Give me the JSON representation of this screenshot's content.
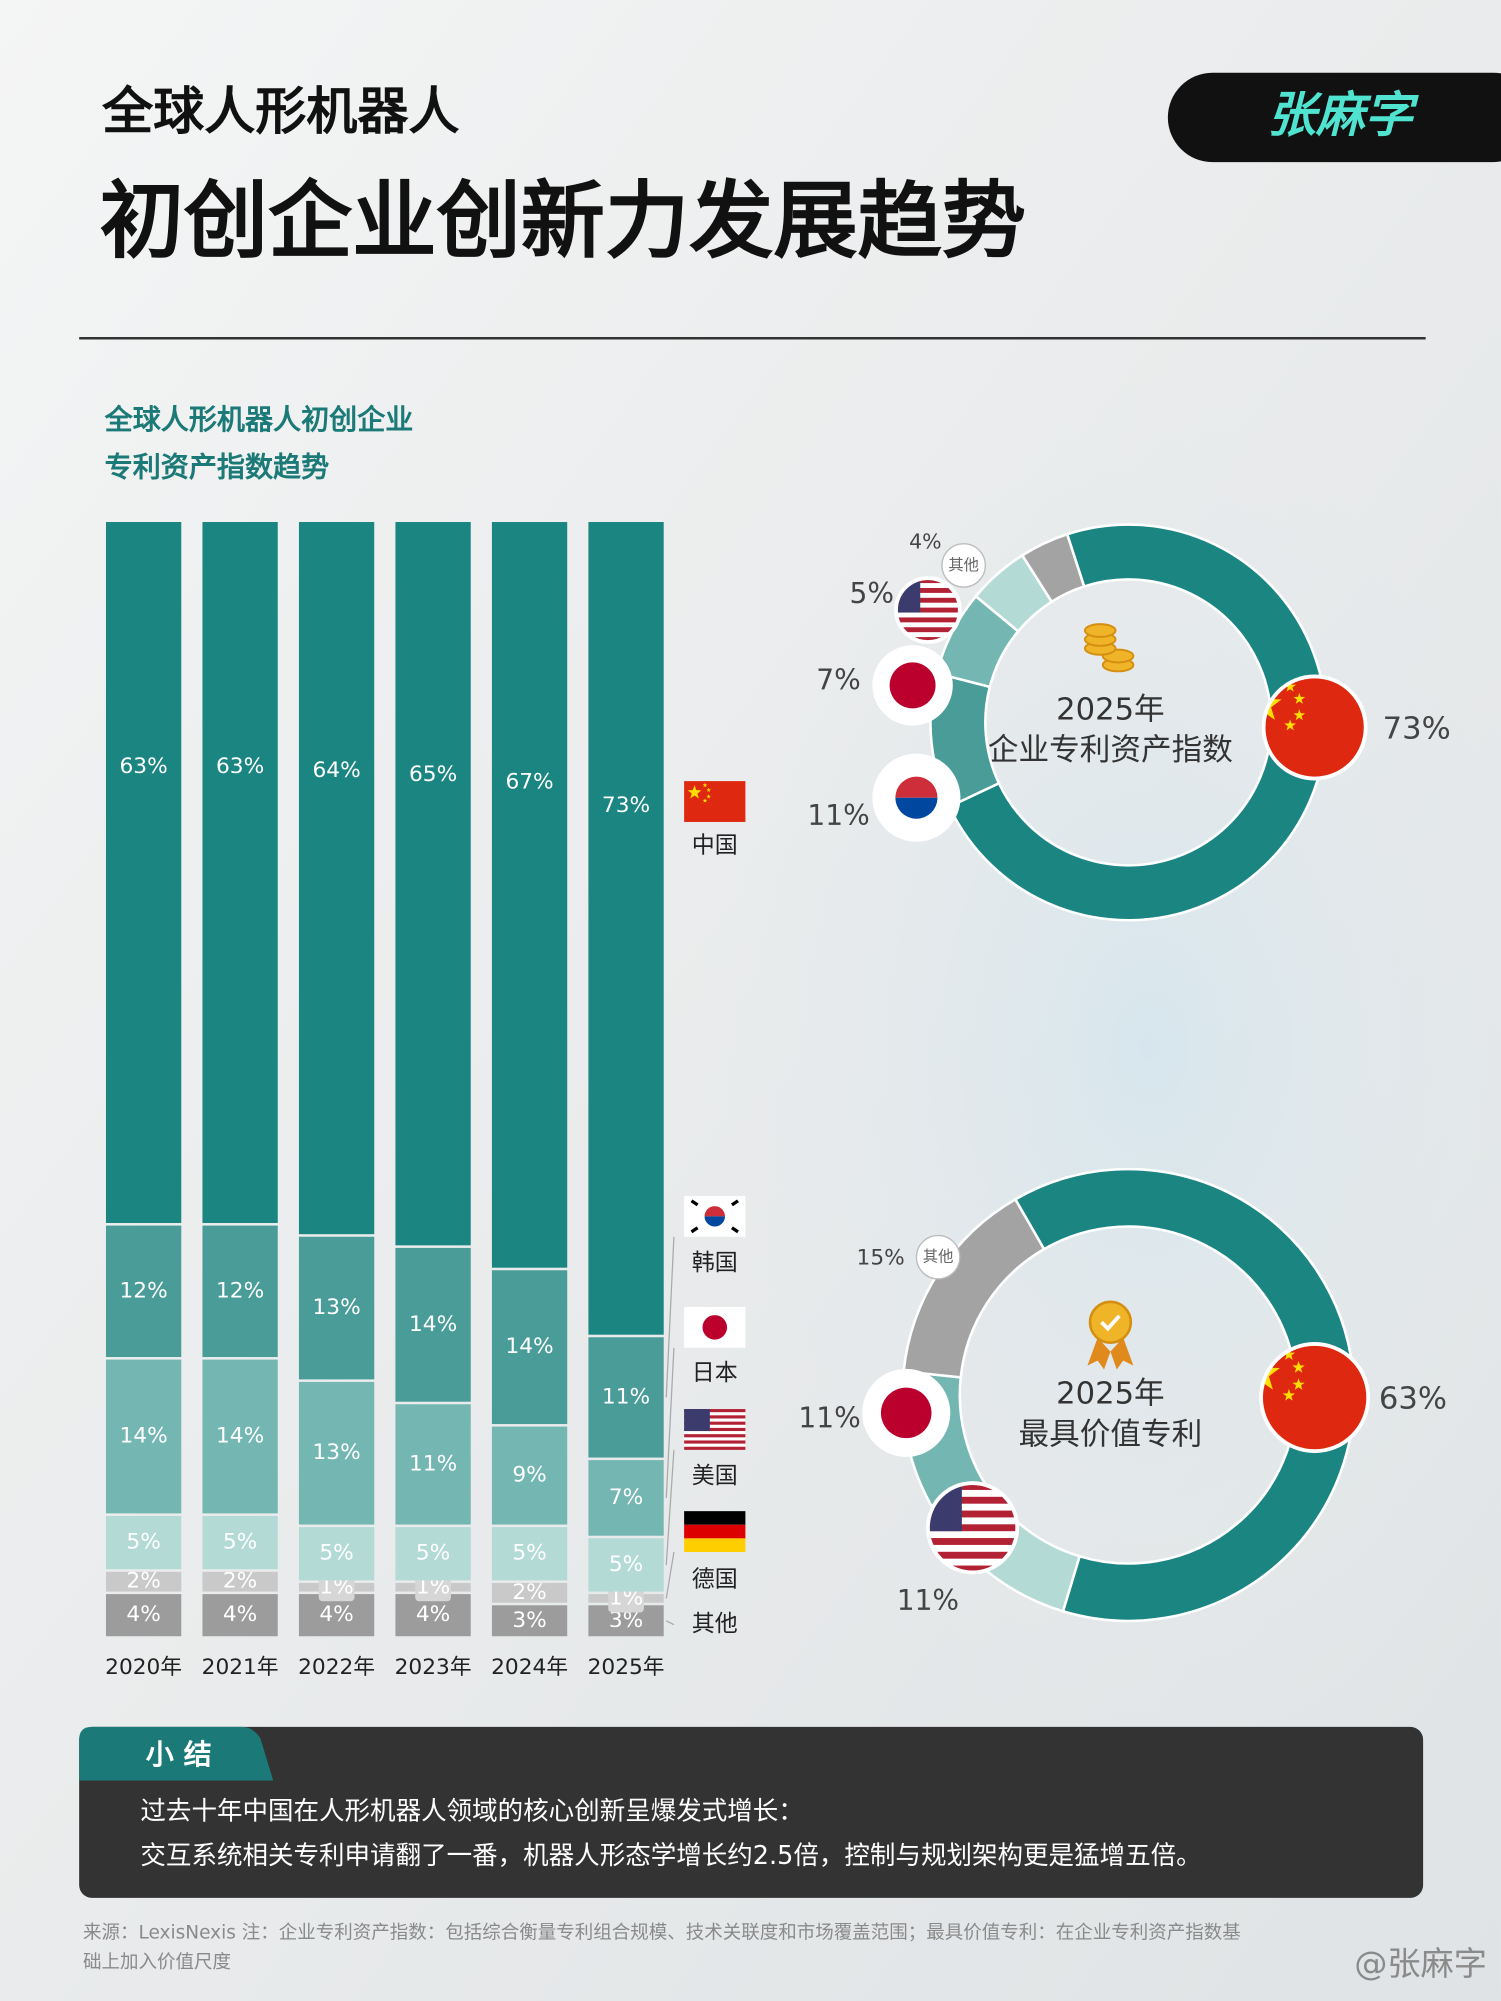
{
  "header": {
    "title_line1": "全球人形机器人",
    "title_line2": "初创企业创新力发展趋势",
    "brand": "张麻字"
  },
  "chart_data": [
    {
      "type": "stacked-bar",
      "title": [
        "全球人形机器人初创企业",
        "专利资产指数趋势"
      ],
      "categories": [
        "2020年",
        "2021年",
        "2022年",
        "2023年",
        "2024年",
        "2025年"
      ],
      "ylim": [
        0,
        100
      ],
      "series": [
        {
          "name": "中国",
          "color": "#1b8582",
          "values": [
            63,
            63,
            64,
            65,
            67,
            73
          ],
          "value_labels": [
            "63%",
            "63%",
            "64%",
            "65%",
            "67%",
            "73%"
          ]
        },
        {
          "name": "韩国",
          "color": "#4a9c98",
          "values": [
            12,
            12,
            13,
            14,
            14,
            11
          ],
          "value_labels": [
            "12%",
            "12%",
            "13%",
            "14%",
            "14%",
            "11%"
          ]
        },
        {
          "name": "日本",
          "color": "#74b7b2",
          "values": [
            14,
            14,
            13,
            11,
            9,
            7
          ],
          "value_labels": [
            "14%",
            "14%",
            "13%",
            "11%",
            "9%",
            "7%"
          ]
        },
        {
          "name": "美国",
          "color": "#b4dad6",
          "values": [
            5,
            5,
            5,
            5,
            5,
            5
          ],
          "value_labels": [
            "5%",
            "5%",
            "5%",
            "5%",
            "5%",
            "5%"
          ]
        },
        {
          "name": "德国",
          "color": "#c9c9c9",
          "values": [
            2,
            2,
            1,
            1,
            2,
            1
          ],
          "value_labels": [
            "2%",
            "2%",
            "1%",
            "1%",
            "2%",
            "1%"
          ]
        },
        {
          "name": "其他",
          "color": "#9c9c9c",
          "values": [
            4,
            4,
            4,
            4,
            3,
            3
          ],
          "value_labels": [
            "4%",
            "4%",
            "4%",
            "4%",
            "3%",
            "3%"
          ]
        }
      ]
    },
    {
      "type": "donut",
      "title": [
        "2025年",
        "企业专利资产指数"
      ],
      "categories": [
        null,
        null,
        null,
        null,
        "其他"
      ],
      "values": [
        73,
        11,
        7,
        5,
        4
      ],
      "value_labels": [
        "73%",
        "11%",
        "7%",
        "5%",
        "4%"
      ],
      "colors": [
        "#1b8582",
        "#4a9c98",
        "#74b7b2",
        "#b4dad6",
        "#a3a3a3"
      ]
    },
    {
      "type": "donut",
      "title": [
        "2025年",
        "最具价值专利"
      ],
      "categories": [
        null,
        null,
        null,
        "其他"
      ],
      "values": [
        63,
        11,
        11,
        15
      ],
      "value_labels": [
        "63%",
        "11%",
        "11%",
        "15%"
      ],
      "colors": [
        "#1b8582",
        "#b4dad6",
        "#74b7b2",
        "#a3a3a3"
      ]
    }
  ],
  "summary": {
    "heading": "小 结",
    "lines": [
      "过去十年中国在人形机器人领域的核心创新呈爆发式增长：",
      "交互系统相关专利申请翻了一番，机器人形态学增长约2.5倍，控制与规划架构更是猛增五倍。"
    ]
  },
  "footer": {
    "source": [
      "来源：LexisNexis 注：企业专利资产指数：包括综合衡量专利组合规模、技术关联度和市场覆盖范围；最具价值专利：在企业专利资产指数基",
      "础上加入价值尺度"
    ],
    "watermark": "@张麻字"
  }
}
